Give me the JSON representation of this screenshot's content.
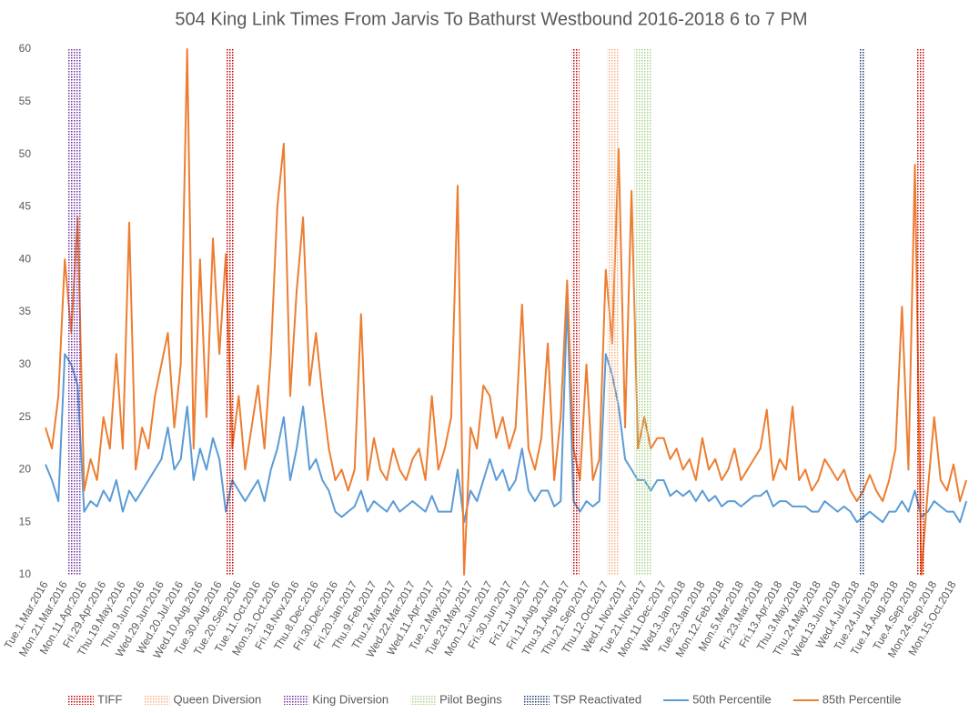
{
  "chart_data": {
    "type": "line",
    "title": "504 King Link Times From Jarvis To Bathurst Westbound 2016-2018 6 to 7 PM",
    "categories": [
      "Tue.1.Mar.2016",
      null,
      null,
      "Mon.21.Mar.2016",
      null,
      null,
      "Mon.11.Apr.2016",
      null,
      null,
      "Fri.29.Apr.2016",
      null,
      null,
      "Thu.19.May.2016",
      null,
      null,
      "Thu.9.Jun.2016",
      null,
      null,
      "Wed.29.Jun.2016",
      null,
      null,
      "Wed.20.Jul.2016",
      null,
      null,
      "Wed.10.Aug.2016",
      null,
      null,
      "Tue.30.Aug.2016",
      null,
      null,
      "Tue.20.Sep.2016",
      null,
      null,
      "Tue.11.Oct.2016",
      null,
      null,
      "Mon.31.Oct.2016",
      null,
      null,
      "Fri.18.Nov.2016",
      null,
      null,
      "Thu.8.Dec.2016",
      null,
      null,
      "Fri.30.Dec.2016",
      null,
      null,
      "Fri.20.Jan.2017",
      null,
      null,
      "Thu.9.Feb.2017",
      null,
      null,
      "Thu.2.Mar.2017",
      null,
      null,
      "Wed.22.Mar.2017",
      null,
      null,
      "Wed.11.Apr.2017",
      null,
      null,
      "Tue.2.May.2017",
      null,
      null,
      "Tue.23.May.2017",
      null,
      null,
      "Mon.12.Jun.2017",
      null,
      null,
      "Fri.30.Jun.2017",
      null,
      null,
      "Fri.21.Jul.2017",
      null,
      null,
      "Fri.11.Aug.2017",
      null,
      null,
      "Thu.31.Aug.2017",
      null,
      null,
      "Thu.21.Sep.2017",
      null,
      null,
      "Thu.12.Oct.2017",
      null,
      null,
      "Wed.1.Nov.2017",
      null,
      null,
      "Tue.21.Nov.2017",
      null,
      null,
      "Mon.11.Dec.2017",
      null,
      null,
      "Wed.3.Jan.2018",
      null,
      null,
      "Tue.23.Jan.2018",
      null,
      null,
      "Mon.12.Feb.2018",
      null,
      null,
      "Mon.5.Mar.2018",
      null,
      null,
      "Fri.23.Mar.2018",
      null,
      null,
      "Fri.13.Apr.2018",
      null,
      null,
      "Thu.3.May.2018",
      null,
      null,
      "Thu.24.May.2018",
      null,
      null,
      "Wed.13.Jun.2018",
      null,
      null,
      "Wed.4.Jul.2018",
      null,
      null,
      "Tue.24.Jul.2018",
      null,
      null,
      "Tue.14.Aug.2018",
      null,
      null,
      "Tue.4.Sep.2018",
      null,
      null,
      "Mon.24.Sep.2018",
      null,
      null,
      "Mon.15.Oct.2018",
      null,
      null
    ],
    "series": [
      {
        "name": "50th Percentile",
        "color": "#5b9bd5",
        "values": [
          20.5,
          19,
          17,
          31,
          30,
          28,
          16,
          17,
          16.5,
          18,
          17,
          19,
          16,
          18,
          17,
          18,
          19,
          20,
          21,
          24,
          20,
          21,
          26,
          19,
          22,
          20,
          23,
          21,
          16,
          19,
          18,
          17,
          18,
          19,
          17,
          20,
          22,
          25,
          19,
          22,
          26,
          20,
          21,
          19,
          18,
          16,
          15.5,
          16,
          16.5,
          18,
          16,
          17,
          16.5,
          16,
          17,
          16,
          16.5,
          17,
          16.5,
          16,
          17.5,
          16,
          16,
          16,
          20,
          15,
          18,
          17,
          19,
          21,
          19,
          20,
          18,
          19,
          22,
          18,
          17,
          18,
          18,
          16.5,
          17,
          36,
          17,
          16,
          17,
          16.5,
          17,
          31,
          29,
          26,
          21,
          20,
          19,
          19,
          18,
          19,
          19,
          17.5,
          18,
          17.5,
          18,
          17,
          18,
          17,
          17.5,
          16.5,
          17,
          17,
          16.5,
          17,
          17.5,
          17.5,
          18,
          16.5,
          17,
          17,
          16.5,
          16.5,
          16.5,
          16,
          16,
          17,
          16.5,
          16,
          16.5,
          16,
          15,
          15.5,
          16,
          15.5,
          15,
          16,
          16,
          17,
          16,
          18,
          15.5,
          16,
          17,
          16.5,
          16,
          16,
          15,
          17
        ]
      },
      {
        "name": "85th Percentile",
        "color": "#ed7d31",
        "values": [
          24,
          22,
          27,
          40,
          33,
          44,
          18,
          21,
          19,
          25,
          22,
          31,
          22,
          43.5,
          20,
          24,
          22,
          27,
          30,
          33,
          24,
          30,
          60,
          22,
          40,
          25,
          42,
          31,
          40.5,
          22,
          27,
          20,
          24,
          28,
          22,
          31,
          45,
          51,
          27,
          37,
          44,
          28,
          33,
          27,
          22,
          19,
          20,
          18,
          20,
          34.8,
          19,
          23,
          20,
          19,
          22,
          20,
          19,
          21,
          22,
          19,
          27,
          20,
          22,
          25,
          47,
          10,
          24,
          22,
          28,
          27,
          23,
          25,
          22,
          24,
          35.7,
          22,
          20,
          23,
          32,
          19,
          25,
          38,
          22,
          19,
          30,
          19,
          21,
          39,
          32,
          50.5,
          24,
          46.5,
          22,
          25,
          22,
          23,
          23,
          21,
          22,
          20,
          21,
          19,
          23,
          20,
          21,
          19,
          20,
          22,
          19,
          20,
          21,
          22,
          25.7,
          19,
          21,
          20,
          26,
          19,
          20,
          18,
          19,
          21,
          20,
          19,
          20,
          18,
          17,
          18,
          19.5,
          18,
          17,
          19,
          22,
          35.5,
          20,
          49,
          10,
          18,
          25,
          19,
          18,
          20.5,
          17,
          19
        ]
      }
    ],
    "bands": [
      {
        "name": "TIFF",
        "color": "#c00000",
        "ranges": [
          [
            28.0,
            29.2
          ],
          [
            81.7,
            82.9
          ],
          [
            135.3,
            136.6
          ]
        ]
      },
      {
        "name": "Queen Diversion",
        "color": "#f4b183",
        "ranges": [
          [
            87.2,
            89.1
          ]
        ]
      },
      {
        "name": "King Diversion",
        "color": "#7030a0",
        "ranges": [
          [
            3.5,
            5.5
          ]
        ]
      },
      {
        "name": "Pilot Begins",
        "color": "#a9d18e",
        "ranges": [
          [
            91.4,
            94.1
          ]
        ]
      },
      {
        "name": "TSP Reactivated",
        "color": "#1f3864",
        "ranges": [
          [
            126.3,
            127.3
          ]
        ]
      }
    ],
    "ylim": [
      10,
      60
    ],
    "yticks": [
      10,
      15,
      20,
      25,
      30,
      35,
      40,
      45,
      50,
      55,
      60
    ],
    "grid": false
  }
}
